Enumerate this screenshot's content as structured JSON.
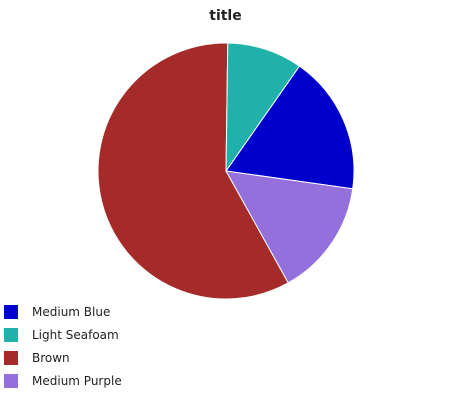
{
  "chart_data": {
    "type": "pie",
    "title": "title",
    "legend_position": "bottom-left",
    "categories": [
      "Medium Blue",
      "Light Seafoam",
      "Brown",
      "Medium Purple"
    ],
    "values": [
      17.5,
      9.5,
      58.3,
      14.7
    ],
    "colors": [
      "#0000cd",
      "#20b2aa",
      "#a52a2a",
      "#9370db"
    ]
  }
}
